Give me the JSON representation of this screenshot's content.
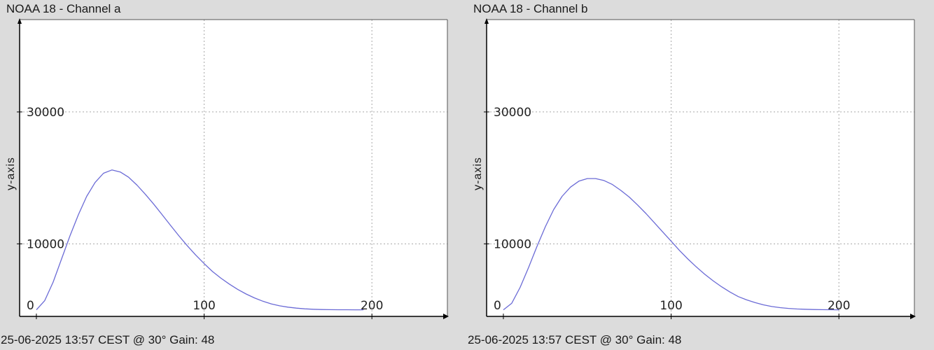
{
  "chart_data": [
    {
      "type": "line",
      "title": "NOAA 18 - Channel a",
      "footer": "25-06-2025 13:57 CEST @ 30° Gain: 48",
      "xlabel": "",
      "ylabel": "y-axis",
      "xlim": [
        -10,
        245
      ],
      "ylim": [
        -1000,
        44000
      ],
      "xticks": [
        0,
        100,
        200
      ],
      "yticks": [
        10000,
        30000
      ],
      "grid": true,
      "line_color": "#6b6bd6",
      "x": [
        0,
        5,
        10,
        15,
        20,
        25,
        30,
        35,
        40,
        45,
        50,
        55,
        60,
        65,
        70,
        75,
        80,
        85,
        90,
        95,
        100,
        105,
        110,
        115,
        120,
        125,
        130,
        135,
        140,
        145,
        150,
        155,
        160,
        165,
        170,
        175,
        180,
        185,
        190,
        195
      ],
      "y": [
        0,
        1400,
        4200,
        7700,
        11200,
        14400,
        17200,
        19300,
        20700,
        21200,
        20900,
        20100,
        18900,
        17500,
        16000,
        14400,
        12800,
        11200,
        9700,
        8300,
        7000,
        5800,
        4800,
        3900,
        3100,
        2400,
        1800,
        1300,
        900,
        600,
        400,
        250,
        150,
        80,
        40,
        20,
        10,
        5,
        0,
        0
      ]
    },
    {
      "type": "line",
      "title": "NOAA 18 - Channel b",
      "footer": "25-06-2025 13:57 CEST @ 30° Gain: 48",
      "xlabel": "",
      "ylabel": "y-axis",
      "xlim": [
        -10,
        245
      ],
      "ylim": [
        -1000,
        44000
      ],
      "xticks": [
        0,
        100,
        200
      ],
      "yticks": [
        10000,
        30000
      ],
      "grid": true,
      "line_color": "#6b6bd6",
      "x": [
        0,
        5,
        10,
        15,
        20,
        25,
        30,
        35,
        40,
        45,
        50,
        55,
        60,
        65,
        70,
        75,
        80,
        85,
        90,
        95,
        100,
        105,
        110,
        115,
        120,
        125,
        130,
        135,
        140,
        145,
        150,
        155,
        160,
        165,
        170,
        175,
        180,
        185,
        190,
        195,
        200
      ],
      "y": [
        0,
        1000,
        3400,
        6400,
        9600,
        12600,
        15200,
        17200,
        18600,
        19500,
        19900,
        19900,
        19600,
        19000,
        18100,
        17100,
        15900,
        14600,
        13200,
        11800,
        10400,
        9000,
        7700,
        6500,
        5400,
        4400,
        3500,
        2700,
        2000,
        1500,
        1100,
        750,
        500,
        330,
        210,
        130,
        80,
        40,
        20,
        10,
        0
      ]
    }
  ]
}
